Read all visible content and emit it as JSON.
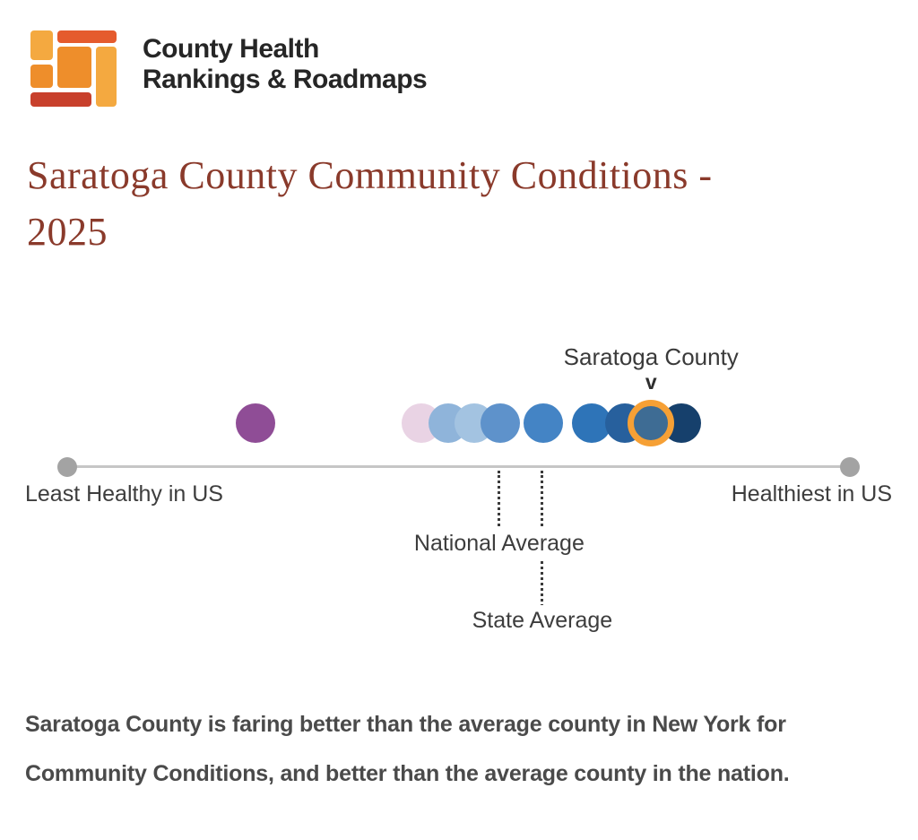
{
  "header": {
    "logo_line1": "County Health",
    "logo_line2": "Rankings & Roadmaps",
    "logo_colors": {
      "amber": "#F4A940",
      "orange": "#EE8E2B",
      "red_orange": "#E55B2D",
      "red": "#C8402C"
    }
  },
  "page_title": {
    "line1": "Saratoga County Community Conditions -",
    "line2": "2025"
  },
  "chart": {
    "county_label": "Saratoga County",
    "pointer_glyph": "v",
    "axis": {
      "left_label": "Least Healthy in US",
      "right_label": "Healthiest in US"
    },
    "national_average_label": "National Average",
    "state_average_label": "State Average",
    "colors": {
      "highlight_ring": "#F6A035",
      "axis_line_gray": "#C6C6C6",
      "endpoint_gray": "#A3A3A3",
      "label_gray": "#3D3D3D"
    },
    "chart_data": {
      "type": "scatter",
      "title": "Saratoga County Community Conditions - 2025",
      "x_axis": {
        "left_label": "Least Healthy in US",
        "right_label": "Healthiest in US",
        "range": [
          0,
          1
        ]
      },
      "points": [
        {
          "name": "county-bubble-purple",
          "x": 0.24,
          "color": "#8F4D96"
        },
        {
          "name": "county-bubble-pink",
          "x": 0.452,
          "color": "#E9D3E4"
        },
        {
          "name": "county-bubble-lightblue-1",
          "x": 0.487,
          "color": "#8FB4DA"
        },
        {
          "name": "county-bubble-lightblue-2",
          "x": 0.52,
          "color": "#A3C3E1"
        },
        {
          "name": "county-bubble-blue-1",
          "x": 0.553,
          "color": "#5E92CB"
        },
        {
          "name": "county-bubble-blue-2",
          "x": 0.608,
          "color": "#4484C5"
        },
        {
          "name": "county-bubble-blue-3",
          "x": 0.67,
          "color": "#2E74B8"
        },
        {
          "name": "county-bubble-blue-4",
          "x": 0.712,
          "color": "#27609D"
        },
        {
          "name": "saratoga-county-bubble",
          "x": 0.746,
          "color": "#3E6C94",
          "highlight": true
        },
        {
          "name": "county-bubble-navy",
          "x": 0.785,
          "color": "#16406C"
        }
      ],
      "highlight_label": "Saratoga County",
      "national_average_x": 0.552,
      "state_average_x": 0.607
    }
  },
  "summary": {
    "text": "Saratoga County is faring better than the average county in New York for Community Conditions, and better than the average county in the nation."
  }
}
